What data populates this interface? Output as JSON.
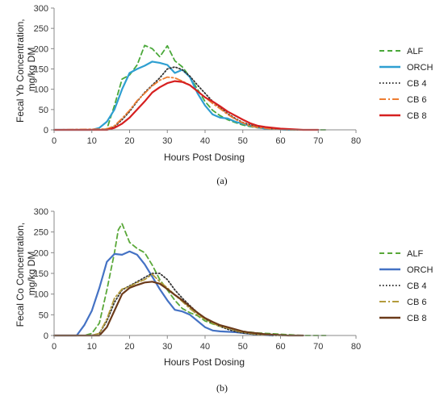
{
  "colors": {
    "ALF": "#4aa83a",
    "ORCH": "#2e9fd1",
    "CB4": "#333333",
    "CB6": "#ed7d31",
    "CB8": "#d62020",
    "ALF_b": "#5aa839",
    "ORCH_b": "#4472c4",
    "CB4_b": "#333333",
    "CB6_b": "#b39b3c",
    "CB8_b": "#6b3a1a"
  },
  "chart_data": [
    {
      "type": "line",
      "panel_label": "(a)",
      "xlabel": "Hours Post Dosing",
      "ylabel": "Fecal Yb Concentration, mg/kg DM",
      "ylabel_lines": [
        "Fecal Yb Concentration,",
        "mg/kg DM"
      ],
      "xlim": [
        0,
        80
      ],
      "ylim": [
        0,
        300
      ],
      "xticks": [
        "0",
        "10",
        "20",
        "30",
        "40",
        "50",
        "60",
        "70",
        "80"
      ],
      "yticks": [
        "0",
        "50",
        "100",
        "150",
        "200",
        "250",
        "300"
      ],
      "grid": false,
      "legend_position": "right",
      "series": [
        {
          "name": "ALF",
          "style": "dashed",
          "color": "#4aa83a",
          "x": [
            0,
            12,
            14,
            16,
            18,
            20,
            22,
            24,
            26,
            28,
            30,
            32,
            34,
            36,
            38,
            40,
            42,
            44,
            46,
            48,
            50,
            52,
            54,
            56,
            58,
            60,
            62,
            64,
            66,
            68,
            70,
            72
          ],
          "y": [
            0,
            0,
            2,
            60,
            125,
            135,
            160,
            208,
            200,
            180,
            207,
            170,
            155,
            130,
            100,
            70,
            48,
            35,
            25,
            18,
            12,
            8,
            5,
            3,
            2,
            1,
            0,
            0,
            0,
            0,
            0,
            0
          ]
        },
        {
          "name": "ORCH",
          "style": "solid",
          "color": "#2e9fd1",
          "x": [
            0,
            10,
            12,
            14,
            16,
            18,
            20,
            22,
            24,
            26,
            28,
            30,
            32,
            34,
            36,
            38,
            40,
            42,
            44,
            46,
            48,
            50,
            52,
            54,
            56,
            58,
            60,
            62,
            64
          ],
          "y": [
            0,
            0,
            5,
            20,
            50,
            100,
            140,
            150,
            158,
            168,
            165,
            160,
            140,
            148,
            130,
            90,
            60,
            38,
            30,
            28,
            20,
            15,
            10,
            6,
            3,
            2,
            1,
            0,
            0
          ]
        },
        {
          "name": "CB 4",
          "style": "dotted",
          "color": "#333333",
          "x": [
            0,
            14,
            16,
            18,
            20,
            22,
            24,
            26,
            28,
            30,
            32,
            34,
            36,
            38,
            40,
            42,
            44,
            46,
            48,
            50,
            52,
            54,
            56,
            58,
            60,
            62,
            64,
            66,
            68
          ],
          "y": [
            0,
            0,
            8,
            25,
            45,
            70,
            92,
            110,
            128,
            150,
            155,
            148,
            132,
            110,
            90,
            70,
            55,
            40,
            28,
            18,
            12,
            8,
            5,
            3,
            2,
            1,
            0,
            0,
            0
          ]
        },
        {
          "name": "CB 6",
          "style": "dashdot",
          "color": "#ed7d31",
          "x": [
            0,
            14,
            16,
            18,
            20,
            22,
            24,
            26,
            28,
            30,
            32,
            34,
            36,
            38,
            40,
            42,
            44,
            46,
            48,
            50,
            52,
            54,
            56,
            58,
            60,
            62,
            64,
            66,
            68
          ],
          "y": [
            0,
            2,
            10,
            28,
            48,
            72,
            90,
            108,
            122,
            130,
            128,
            120,
            110,
            95,
            80,
            65,
            52,
            38,
            26,
            17,
            10,
            6,
            4,
            2,
            1,
            0,
            0,
            0,
            0
          ]
        },
        {
          "name": "CB 8",
          "style": "solid",
          "color": "#d62020",
          "x": [
            0,
            14,
            16,
            18,
            20,
            22,
            24,
            26,
            28,
            30,
            32,
            34,
            36,
            38,
            40,
            42,
            44,
            46,
            48,
            50,
            52,
            54,
            56,
            58,
            60,
            62,
            64,
            66,
            68,
            70
          ],
          "y": [
            0,
            0,
            5,
            15,
            30,
            50,
            70,
            92,
            105,
            115,
            120,
            118,
            110,
            95,
            80,
            70,
            58,
            45,
            35,
            25,
            16,
            10,
            7,
            5,
            3,
            2,
            1,
            0,
            0,
            0
          ]
        }
      ]
    },
    {
      "type": "line",
      "panel_label": "(b)",
      "xlabel": "Hours Post Dosing",
      "ylabel": "Fecal Co Concentration, mg/kg DM",
      "ylabel_lines": [
        "Fecal Co Concentration,",
        "mg/kg DM"
      ],
      "xlim": [
        0,
        80
      ],
      "ylim": [
        0,
        300
      ],
      "xticks": [
        "0",
        "10",
        "20",
        "30",
        "40",
        "50",
        "60",
        "70",
        "80"
      ],
      "yticks": [
        "0",
        "50",
        "100",
        "150",
        "200",
        "250",
        "300"
      ],
      "grid": false,
      "legend_position": "right",
      "series": [
        {
          "name": "ALF",
          "style": "dashed",
          "color": "#5aa839",
          "x": [
            0,
            8,
            10,
            12,
            14,
            16,
            17,
            18,
            20,
            22,
            24,
            26,
            28,
            30,
            32,
            34,
            36,
            38,
            40,
            42,
            44,
            46,
            48,
            50,
            52,
            54,
            56,
            58,
            60,
            62,
            64,
            66,
            68,
            70,
            72
          ],
          "y": [
            0,
            0,
            5,
            30,
            110,
            200,
            255,
            270,
            225,
            210,
            200,
            170,
            135,
            110,
            85,
            65,
            55,
            48,
            35,
            28,
            22,
            18,
            14,
            10,
            8,
            6,
            5,
            4,
            3,
            2,
            1,
            0,
            0,
            0,
            0
          ]
        },
        {
          "name": "ORCH",
          "style": "solid",
          "color": "#4472c4",
          "x": [
            0,
            6,
            8,
            10,
            12,
            14,
            16,
            18,
            20,
            22,
            24,
            26,
            28,
            30,
            32,
            34,
            36,
            38,
            40,
            42,
            44,
            46,
            48,
            50,
            52,
            54,
            56,
            58
          ],
          "y": [
            0,
            0,
            25,
            60,
            115,
            178,
            197,
            195,
            203,
            195,
            172,
            142,
            112,
            85,
            62,
            58,
            50,
            35,
            20,
            12,
            10,
            9,
            8,
            6,
            4,
            2,
            1,
            0
          ]
        },
        {
          "name": "CB 4",
          "style": "dotted",
          "color": "#333333",
          "x": [
            0,
            10,
            12,
            14,
            16,
            18,
            20,
            22,
            24,
            26,
            28,
            30,
            32,
            34,
            36,
            38,
            40,
            42,
            44,
            46,
            48,
            50,
            52,
            54,
            56,
            58,
            60,
            62,
            64
          ],
          "y": [
            0,
            0,
            5,
            35,
            80,
            110,
            120,
            130,
            140,
            150,
            150,
            135,
            110,
            90,
            72,
            55,
            40,
            30,
            22,
            15,
            10,
            6,
            4,
            2,
            1,
            0,
            0,
            0,
            0
          ]
        },
        {
          "name": "CB 6",
          "style": "dashdot",
          "color": "#b39b3c",
          "x": [
            0,
            10,
            12,
            14,
            16,
            18,
            20,
            22,
            24,
            26,
            28,
            30,
            32,
            34,
            36,
            38,
            40,
            42,
            44,
            46,
            48,
            50,
            52,
            54,
            56,
            58,
            60,
            62,
            64
          ],
          "y": [
            0,
            0,
            5,
            40,
            90,
            112,
            118,
            128,
            135,
            148,
            130,
            115,
            98,
            82,
            65,
            50,
            40,
            30,
            22,
            18,
            12,
            8,
            5,
            3,
            2,
            1,
            0,
            0,
            0
          ]
        },
        {
          "name": "CB 8",
          "style": "solid",
          "color": "#6b3a1a",
          "x": [
            0,
            12,
            14,
            16,
            18,
            20,
            22,
            24,
            26,
            28,
            30,
            32,
            34,
            36,
            38,
            40,
            42,
            44,
            46,
            48,
            50,
            52,
            54,
            56,
            58,
            60,
            62,
            64,
            66
          ],
          "y": [
            0,
            0,
            20,
            60,
            100,
            115,
            122,
            128,
            130,
            125,
            112,
            98,
            85,
            70,
            55,
            42,
            33,
            25,
            20,
            15,
            10,
            7,
            5,
            3,
            2,
            1,
            0,
            0,
            0
          ]
        }
      ]
    }
  ]
}
